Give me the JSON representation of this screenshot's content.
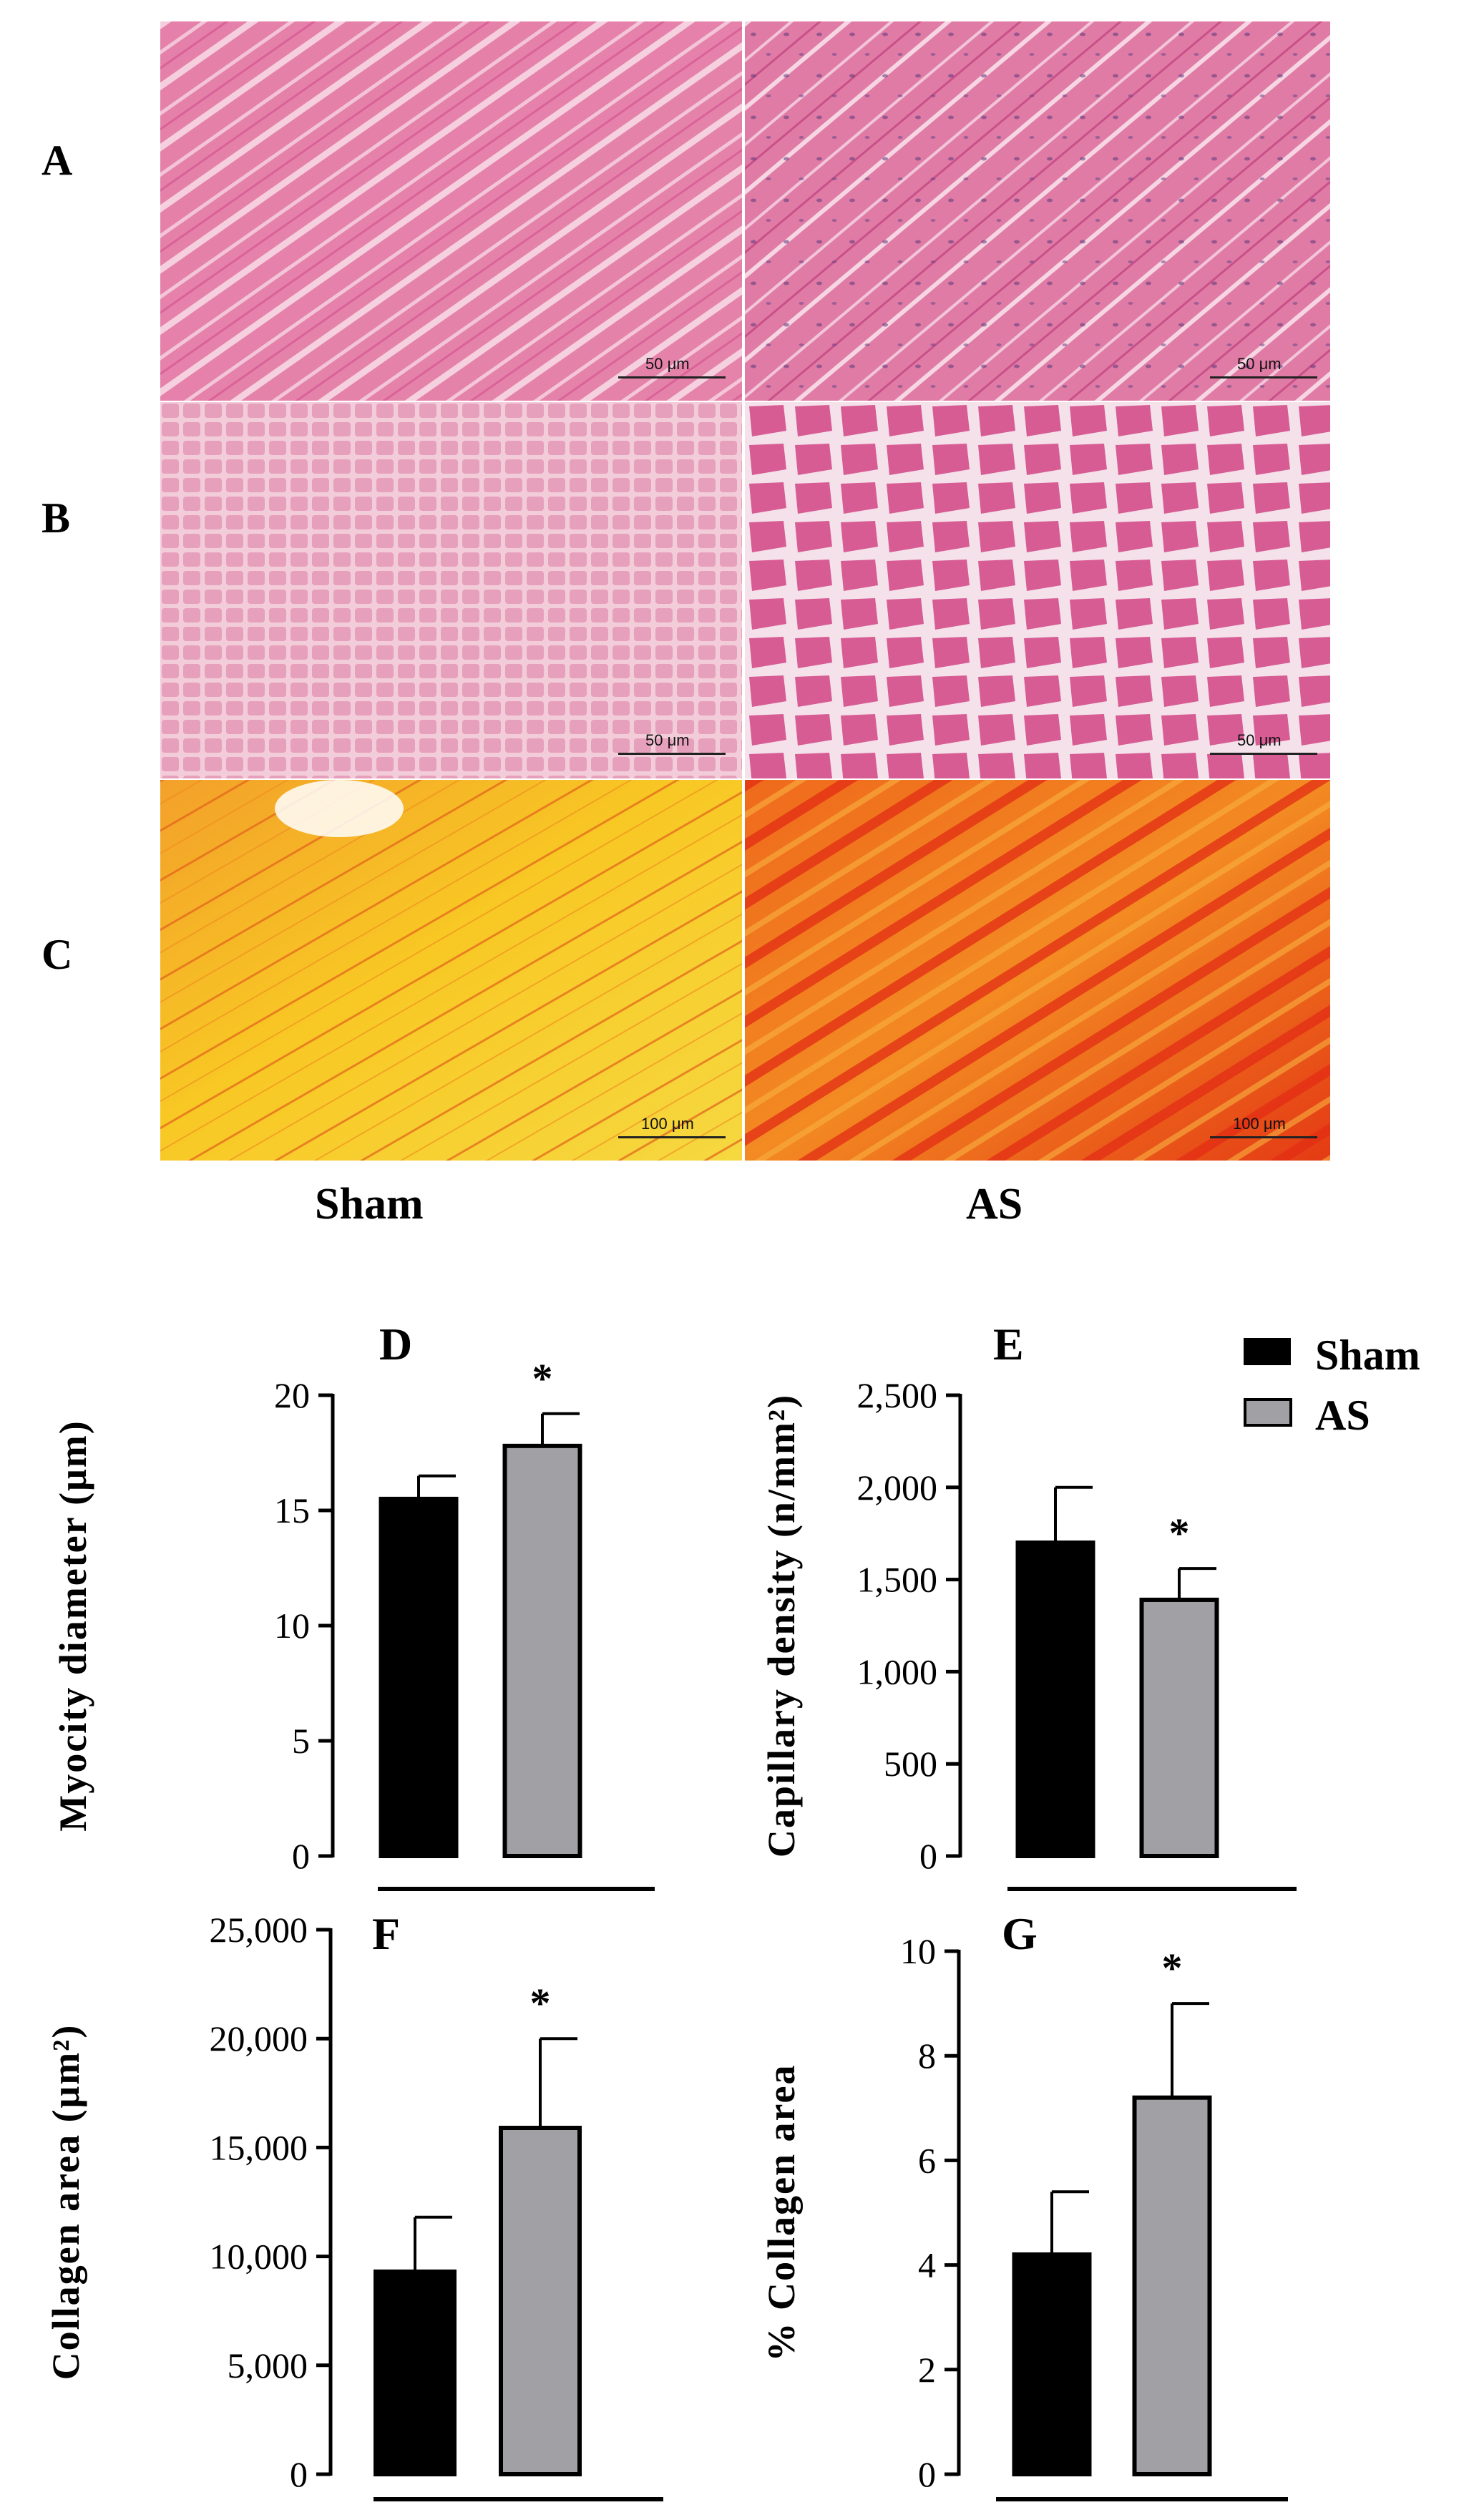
{
  "image_panels": {
    "row_labels": [
      "A",
      "B",
      "C"
    ],
    "group_labels": [
      "Sham",
      "AS"
    ],
    "scale_bars": [
      {
        "row": "A",
        "text": "50 μm"
      },
      {
        "row": "B",
        "text": "50 μm"
      },
      {
        "row": "C",
        "text": "100 μm"
      }
    ],
    "stain_colors": {
      "he_light": "#f2b6cc",
      "he_pink": "#e47fa8",
      "he_deep": "#d14f8a",
      "he_nucleus": "#5b3a7a",
      "sirius_yellow": "#f8c824",
      "sirius_orange": "#ef8a1c",
      "sirius_red": "#e22c14"
    }
  },
  "legend": {
    "items": [
      {
        "label": "Sham",
        "color": "#000000"
      },
      {
        "label": "AS",
        "color": "#a0a0a5"
      }
    ]
  },
  "chart_data": [
    {
      "panel": "D",
      "type": "bar",
      "categories": [
        "Sham",
        "AS"
      ],
      "values": [
        15.5,
        17.8
      ],
      "errors": [
        1.0,
        1.4
      ],
      "significance": [
        "",
        "*"
      ],
      "ylabel": "Myocity diameter (μm)",
      "ylim": [
        0,
        20
      ],
      "yticks": [
        0,
        5,
        10,
        15,
        20
      ],
      "ytick_labels": [
        "0",
        "5",
        "10",
        "15",
        "20"
      ]
    },
    {
      "panel": "E",
      "type": "bar",
      "categories": [
        "Sham",
        "AS"
      ],
      "values": [
        1700,
        1390
      ],
      "errors": [
        300,
        170
      ],
      "significance": [
        "",
        "*"
      ],
      "ylabel": "Capillary density (n/mm²)",
      "ylim": [
        0,
        2500
      ],
      "yticks": [
        0,
        500,
        1000,
        1500,
        2000,
        2500
      ],
      "ytick_labels": [
        "0",
        "500",
        "1,000",
        "1,500",
        "2,000",
        "2,500"
      ]
    },
    {
      "panel": "F",
      "type": "bar",
      "categories": [
        "Sham",
        "AS"
      ],
      "values": [
        9300,
        15900
      ],
      "errors": [
        2500,
        4100
      ],
      "significance": [
        "",
        "*"
      ],
      "ylabel": "Collagen area (μm²)",
      "ylim": [
        0,
        25000
      ],
      "yticks": [
        0,
        5000,
        10000,
        15000,
        20000,
        25000
      ],
      "ytick_labels": [
        "0",
        "5,000",
        "10,000",
        "15,000",
        "20,000",
        "25,000"
      ]
    },
    {
      "panel": "G",
      "type": "bar",
      "categories": [
        "Sham",
        "AS"
      ],
      "values": [
        4.2,
        7.2
      ],
      "errors": [
        1.2,
        1.8
      ],
      "significance": [
        "",
        "*"
      ],
      "ylabel": "% Collagen area",
      "ylim": [
        0,
        10
      ],
      "yticks": [
        0,
        2,
        4,
        6,
        8,
        10
      ],
      "ytick_labels": [
        "0",
        "2",
        "4",
        "6",
        "8",
        "10"
      ]
    }
  ]
}
